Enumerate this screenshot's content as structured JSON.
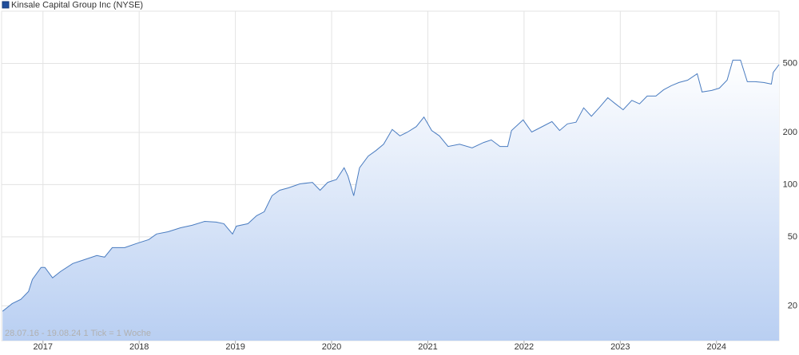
{
  "chart_data": {
    "type": "area",
    "title": "Kinsale Capital Group Inc (NYSE)",
    "note": "28.07.16 - 19.08.24   1 Tick = 1 Woche",
    "log": true,
    "grid": true,
    "xlim": [
      2016.57,
      2024.65
    ],
    "xticks": [
      2017,
      2018,
      2019,
      2020,
      2021,
      2022,
      2023,
      2024
    ],
    "ylim": [
      12.6,
      1000
    ],
    "yticks": [
      20,
      50,
      100,
      200,
      500
    ],
    "x": [
      2016.58,
      2016.68,
      2016.77,
      2016.85,
      2016.89,
      2016.98,
      2017.02,
      2017.1,
      2017.18,
      2017.31,
      2017.43,
      2017.56,
      2017.64,
      2017.72,
      2017.85,
      2017.97,
      2018.1,
      2018.18,
      2018.3,
      2018.43,
      2018.55,
      2018.68,
      2018.8,
      2018.88,
      2018.97,
      2019.01,
      2019.13,
      2019.22,
      2019.3,
      2019.38,
      2019.46,
      2019.55,
      2019.67,
      2019.8,
      2019.88,
      2019.96,
      2020.05,
      2020.13,
      2020.17,
      2020.23,
      2020.29,
      2020.38,
      2020.46,
      2020.54,
      2020.63,
      2020.71,
      2020.79,
      2020.88,
      2020.96,
      2021.04,
      2021.12,
      2021.21,
      2021.33,
      2021.46,
      2021.58,
      2021.66,
      2021.75,
      2021.83,
      2021.87,
      2021.99,
      2022.08,
      2022.16,
      2022.29,
      2022.37,
      2022.45,
      2022.54,
      2022.62,
      2022.7,
      2022.78,
      2022.87,
      2022.95,
      2023.03,
      2023.12,
      2023.2,
      2023.28,
      2023.37,
      2023.45,
      2023.53,
      2023.61,
      2023.7,
      2023.8,
      2023.85,
      2023.95,
      2024.03,
      2024.11,
      2024.17,
      2024.25,
      2024.32,
      2024.4,
      2024.49,
      2024.57,
      2024.59,
      2024.65
    ],
    "series": [
      {
        "name": "Kinsale Capital Group Inc (NYSE)",
        "color": "#4a7cc0",
        "values": [
          18.6,
          20.6,
          21.8,
          24.2,
          28.4,
          33.3,
          33.3,
          29.0,
          31.5,
          35.1,
          36.9,
          39.0,
          38.2,
          43.3,
          43.3,
          45.7,
          48.2,
          51.9,
          53.5,
          56.4,
          58.3,
          61.4,
          60.8,
          59.5,
          51.9,
          57.6,
          59.5,
          66.2,
          69.8,
          86.2,
          92.8,
          95.8,
          101,
          103,
          92.8,
          103,
          107,
          125,
          112,
          86.2,
          125,
          146,
          157,
          171,
          208,
          191,
          201,
          216,
          245,
          205,
          191,
          166,
          171,
          163,
          175,
          181,
          166,
          166,
          205,
          236,
          201,
          212,
          231,
          205,
          224,
          229,
          277,
          248,
          277,
          317,
          292,
          270,
          306,
          292,
          324,
          324,
          352,
          372,
          388,
          400,
          436,
          342,
          349,
          360,
          400,
          522,
          522,
          392,
          392,
          388,
          380,
          444,
          492
        ]
      }
    ]
  }
}
